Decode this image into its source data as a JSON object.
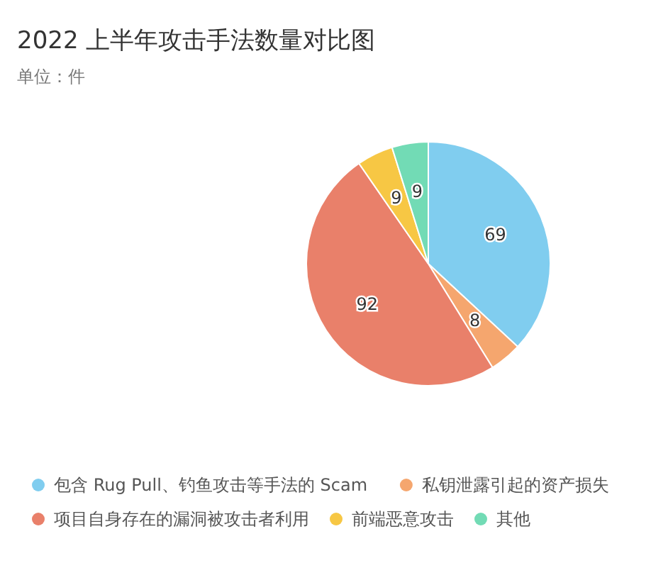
{
  "chart_data": {
    "type": "pie",
    "title": "2022 上半年攻击手法数量对比图",
    "subtitle": "单位：件",
    "categories": [
      "包含 Rug Pull、钓鱼攻击等手法的 Scam",
      "私钥泄露引起的资产损失",
      "项目自身存在的漏洞被攻击者利用",
      "前端恶意攻击",
      "其他"
    ],
    "values": [
      69,
      8,
      92,
      9,
      9
    ],
    "colors": [
      "#80cdef",
      "#f5a66e",
      "#e9806a",
      "#f7c744",
      "#72dbb5"
    ],
    "data_labels": true,
    "legend": "bottom"
  }
}
